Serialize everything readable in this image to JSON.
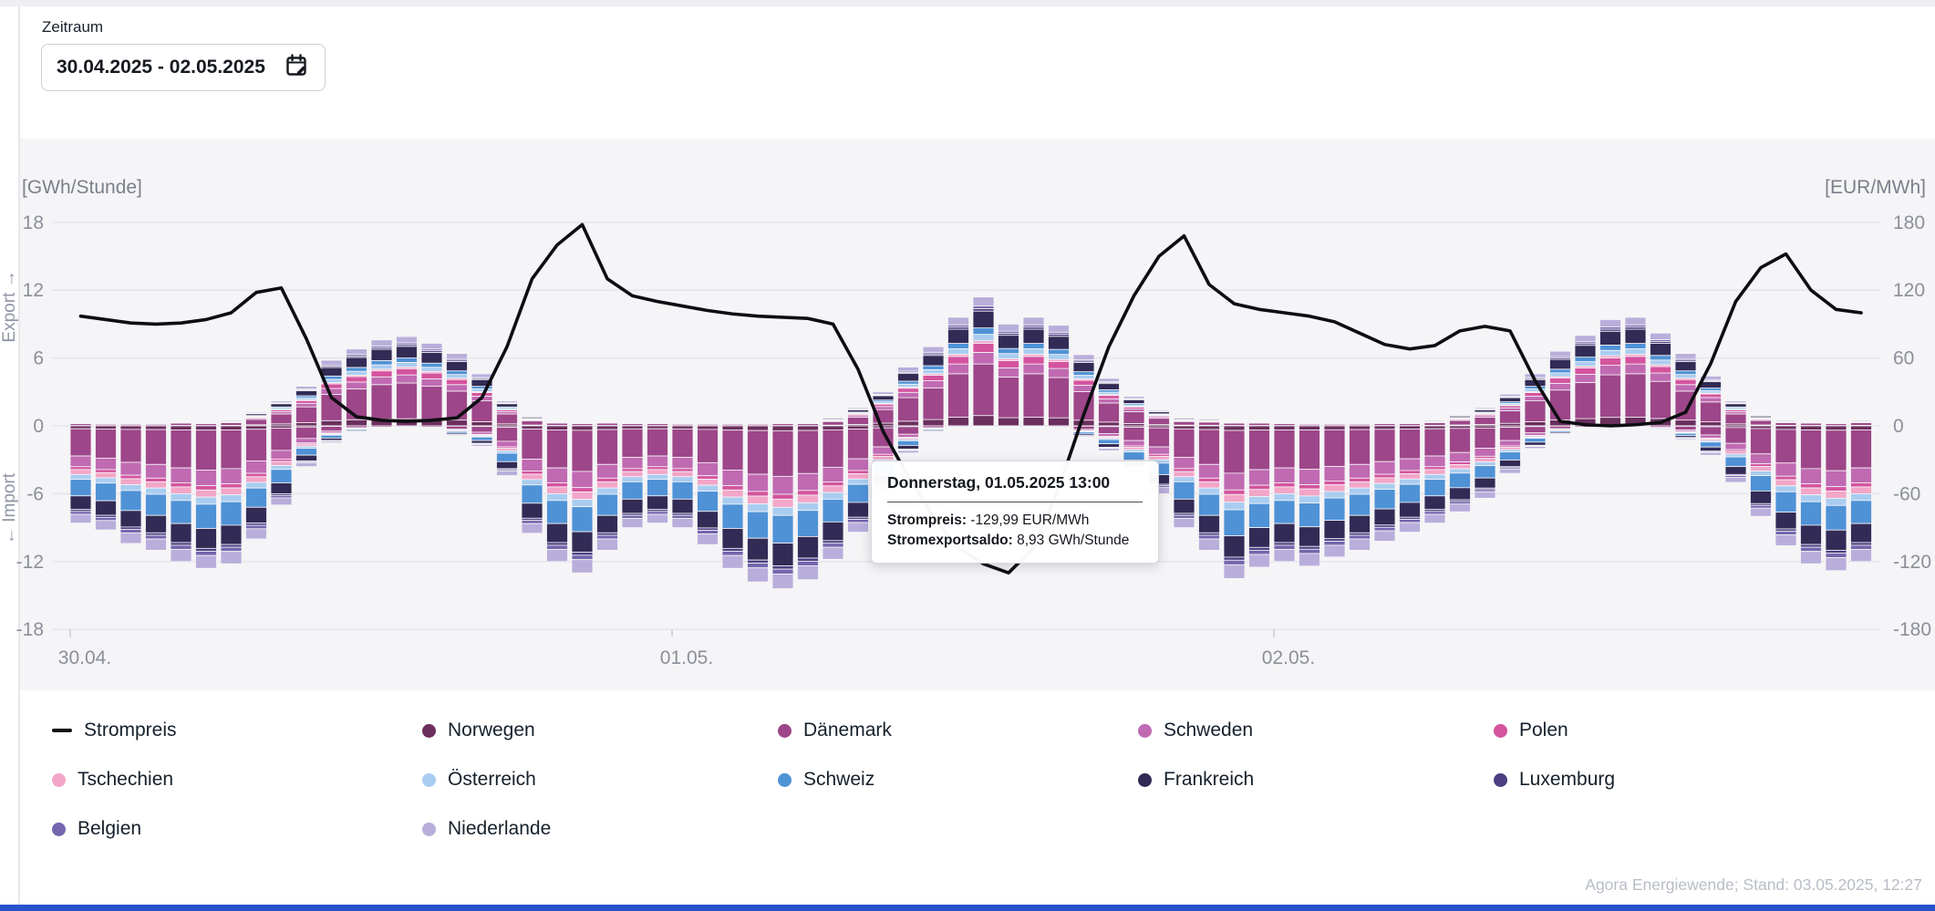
{
  "page": {
    "top_strip_color": "#edeff1",
    "left_border_color": "#e6e8eb",
    "bottom_bar_color": "#2553cb",
    "chart_bg": "#f5f4f6"
  },
  "header": {
    "zeitraum_label": "Zeitraum",
    "date_range": "30.04.2025 - 02.05.2025"
  },
  "tooltip": {
    "title": "Donnerstag, 01.05.2025 13:00",
    "price_label": "Strompreis:",
    "price_value": " -129,99 EUR/MWh",
    "saldo_label": "Stromexportsaldo:",
    "saldo_value": " 8,93 GWh/Stunde"
  },
  "attribution": "Agora Energiewende; Stand: 03.05.2025, 12:27",
  "legend": {
    "items": [
      {
        "label": "Strompreis",
        "type": "line",
        "color": "#111111"
      },
      {
        "label": "Norwegen",
        "type": "dot",
        "color": "#6b2f5e"
      },
      {
        "label": "Dänemark",
        "type": "dot",
        "color": "#9d4689"
      },
      {
        "label": "Schweden",
        "type": "dot",
        "color": "#c06ab2"
      },
      {
        "label": "Polen",
        "type": "dot",
        "color": "#d4549e"
      },
      {
        "label": "Tschechien",
        "type": "dot",
        "color": "#f2a6c8"
      },
      {
        "label": "Österreich",
        "type": "dot",
        "color": "#a9cdf0"
      },
      {
        "label": "Schweiz",
        "type": "dot",
        "color": "#4f92d6"
      },
      {
        "label": "Frankreich",
        "type": "dot",
        "color": "#322b56"
      },
      {
        "label": "Luxemburg",
        "type": "dot",
        "color": "#4b3f82"
      },
      {
        "label": "Belgien",
        "type": "dot",
        "color": "#7466ad"
      },
      {
        "label": "Niederlande",
        "type": "dot",
        "color": "#b9aedb"
      }
    ]
  },
  "chart_data": {
    "type": "bar",
    "subtype": "stacked-bar-with-line",
    "title": "",
    "axes": {
      "left_unit": "[GWh/Stunde]",
      "right_unit": "[EUR/MWh]",
      "left_ticks": [
        18,
        12,
        6,
        0,
        -6,
        -12,
        -18
      ],
      "right_ticks": [
        180,
        120,
        60,
        0,
        -60,
        -120,
        -180
      ],
      "left_range": [
        -18,
        18
      ],
      "right_range": [
        -180,
        180
      ],
      "export_axis_label": "Export →",
      "import_axis_label": "← Import",
      "grid": true
    },
    "x_ticks": [
      {
        "label": "30.04.",
        "hour": 0
      },
      {
        "label": "01.05.",
        "hour": 24
      },
      {
        "label": "02.05.",
        "hour": 48
      }
    ],
    "hours_per_day": 24,
    "n_hours": 72,
    "price_series": {
      "name": "Strompreis",
      "unit": "EUR/MWh",
      "color": "#0e0e12",
      "values": [
        97,
        94,
        91,
        90,
        91,
        94,
        100,
        118,
        122,
        77,
        25,
        8,
        5,
        4,
        5,
        7,
        25,
        70,
        130,
        160,
        178,
        130,
        115,
        110,
        106,
        102,
        99,
        97,
        96,
        95,
        90,
        50,
        -5,
        -45,
        -80,
        -108,
        -122,
        -129.99,
        -108,
        -55,
        10,
        70,
        115,
        150,
        168,
        125,
        108,
        103,
        100,
        97,
        92,
        82,
        72,
        68,
        71,
        84,
        88,
        84,
        40,
        4,
        1,
        0,
        1,
        3,
        12,
        55,
        110,
        140,
        152,
        120,
        103,
        100
      ]
    },
    "saldo_series": {
      "name": "Stromexportsaldo",
      "unit": "GWh/Stunde",
      "export_total": [
        0.4,
        0.3,
        0.3,
        0.3,
        0.5,
        0.4,
        0.6,
        1.2,
        2.2,
        3.5,
        5.8,
        6.8,
        7.6,
        7.9,
        7.3,
        6.4,
        4.6,
        2.2,
        0.9,
        0.5,
        0.4,
        0.5,
        0.4,
        0.4,
        0.3,
        0.3,
        0.3,
        0.3,
        0.4,
        0.4,
        0.8,
        1.6,
        3.0,
        5.2,
        7.0,
        9.6,
        11.4,
        9.0,
        9.6,
        8.9,
        6.3,
        4.2,
        2.6,
        1.4,
        0.8,
        0.7,
        0.5,
        0.5,
        0.4,
        0.3,
        0.3,
        0.3,
        0.4,
        0.4,
        0.6,
        1.0,
        1.6,
        2.8,
        4.6,
        6.6,
        8.0,
        9.4,
        9.6,
        8.2,
        6.4,
        4.4,
        2.2,
        1.0,
        0.6,
        0.5,
        0.4,
        0.6
      ],
      "import_total": [
        8.6,
        9.2,
        10.4,
        11.0,
        12.0,
        12.6,
        12.2,
        10.0,
        7.0,
        3.6,
        1.5,
        0.6,
        0.4,
        0.3,
        0.4,
        0.9,
        1.8,
        4.4,
        9.5,
        12.0,
        13.0,
        11.0,
        9.0,
        8.6,
        9.0,
        10.5,
        12.6,
        13.8,
        14.4,
        13.6,
        11.8,
        9.4,
        6.0,
        2.4,
        0.6,
        0.3,
        0.2,
        0.1,
        0.2,
        0.3,
        1.0,
        2.2,
        4.2,
        6.0,
        9.0,
        11.0,
        13.5,
        12.5,
        12.0,
        12.4,
        11.6,
        11.0,
        10.2,
        9.4,
        8.6,
        7.6,
        6.4,
        4.2,
        2.0,
        0.8,
        0.4,
        0.3,
        0.3,
        0.5,
        1.2,
        2.6,
        5.0,
        8.0,
        10.6,
        12.2,
        12.8,
        12.0
      ],
      "highlighted_hour_index": 37,
      "highlighted_net_export": 8.93
    },
    "countries": [
      {
        "name": "Norwegen",
        "color": "#6b2f5e",
        "pos_share": 0.08,
        "neg_share": 0.03
      },
      {
        "name": "Dänemark",
        "color": "#9d4689",
        "pos_share": 0.4,
        "neg_share": 0.28
      },
      {
        "name": "Schweden",
        "color": "#c06ab2",
        "pos_share": 0.09,
        "neg_share": 0.11
      },
      {
        "name": "Polen",
        "color": "#d4549e",
        "pos_share": 0.07,
        "neg_share": 0.03
      },
      {
        "name": "Tschechien",
        "color": "#f2a6c8",
        "pos_share": 0.02,
        "neg_share": 0.05
      },
      {
        "name": "Österreich",
        "color": "#a9cdf0",
        "pos_share": 0.05,
        "neg_share": 0.05
      },
      {
        "name": "Schweiz",
        "color": "#4f92d6",
        "pos_share": 0.05,
        "neg_share": 0.17
      },
      {
        "name": "Frankreich",
        "color": "#322b56",
        "pos_share": 0.13,
        "neg_share": 0.14
      },
      {
        "name": "Luxemburg",
        "color": "#4b3f82",
        "pos_share": 0.02,
        "neg_share": 0.02
      },
      {
        "name": "Belgien",
        "color": "#7466ad",
        "pos_share": 0.02,
        "neg_share": 0.03
      },
      {
        "name": "Niederlande",
        "color": "#b9aedb",
        "pos_share": 0.07,
        "neg_share": 0.09
      }
    ],
    "series_model": "per-country hourly value = pos_share * export_total[h] (stacked up) and -neg_share * import_total[h] (stacked down), countries stacked outward from zero in listed order"
  }
}
